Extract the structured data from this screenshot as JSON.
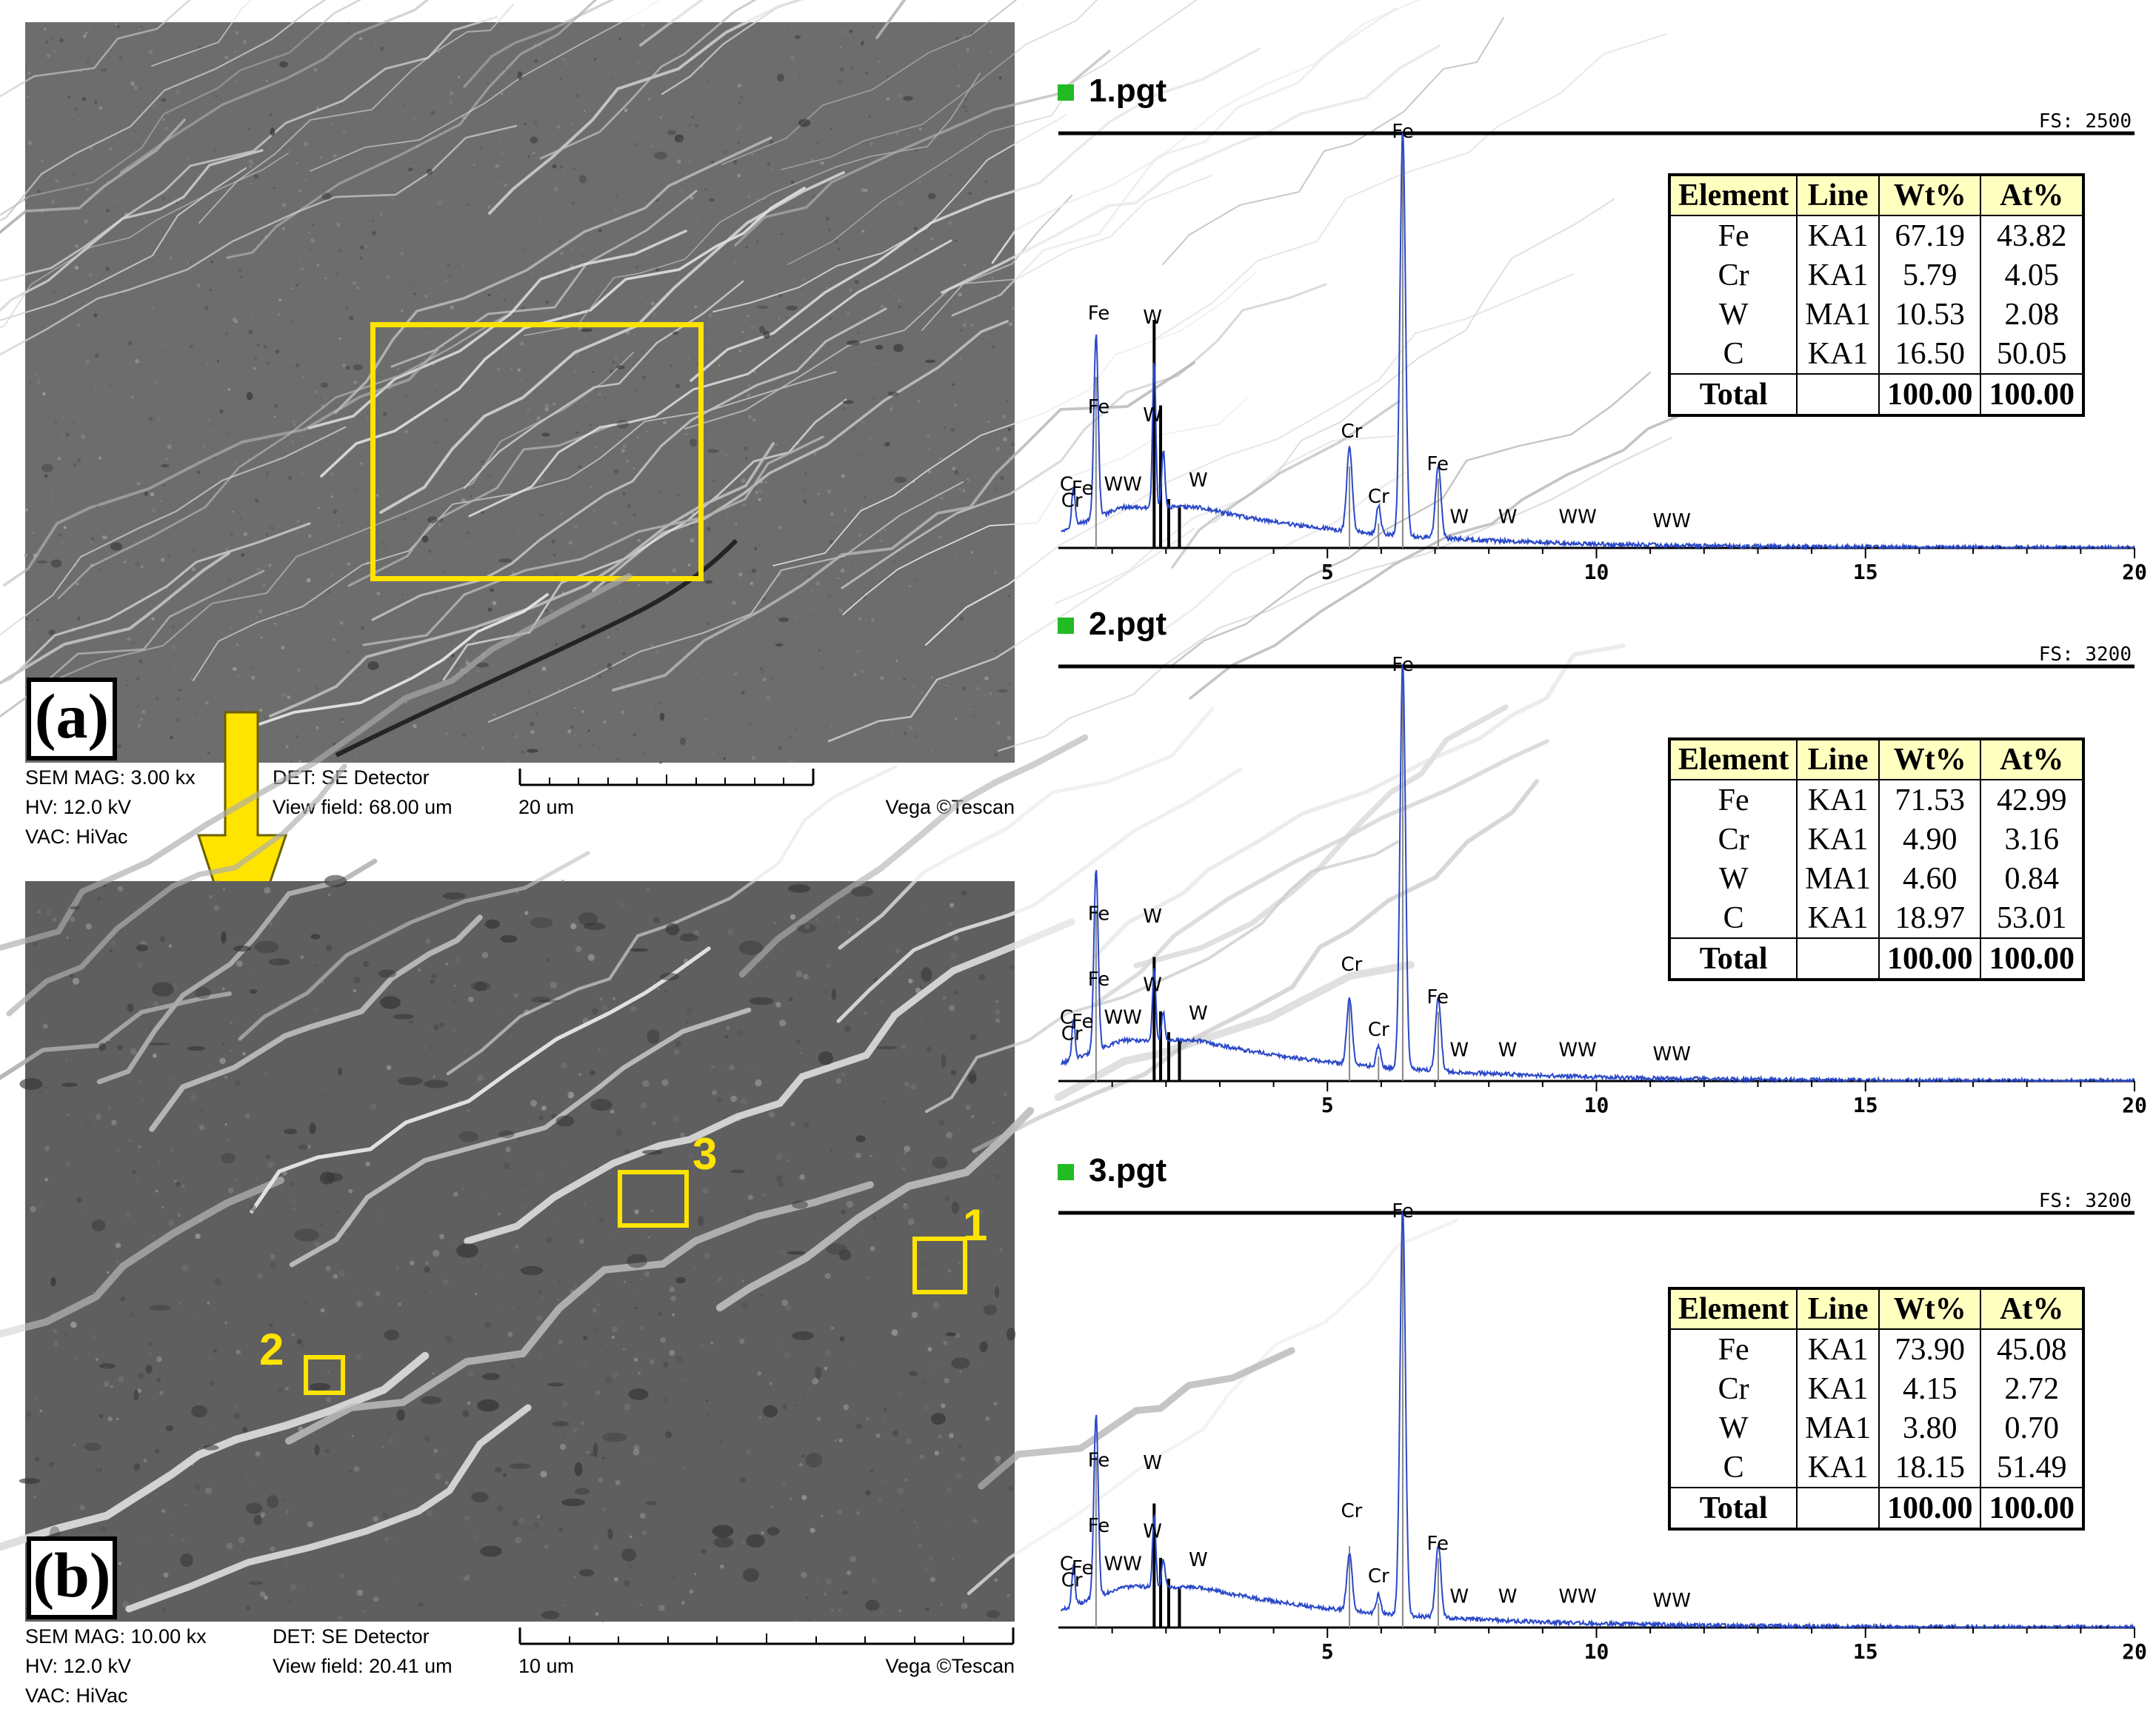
{
  "panel_a": {
    "label": "(a)",
    "info": {
      "mag": "SEM MAG: 3.00 kx",
      "hv": "HV:   12.0 kV",
      "vac": "VAC: HiVac",
      "det": "DET: SE Detector",
      "view": "View field: 68.00 um",
      "scale": "20 um",
      "brand": "Vega ©Tescan"
    }
  },
  "panel_b": {
    "label": "(b)",
    "info": {
      "mag": "SEM MAG: 10.00 kx",
      "hv": "HV:   12.0 kV",
      "vac": "VAC: HiVac",
      "det": "DET: SE Detector",
      "view": "View field: 20.41 um",
      "scale": "10 um",
      "brand": "Vega ©Tescan"
    },
    "markers": [
      {
        "label": "1"
      },
      {
        "label": "2"
      },
      {
        "label": "3"
      }
    ]
  },
  "colors": {
    "highlight": "#ffe400",
    "spectrum": "#2a48c8",
    "table_header": "#ffffc0",
    "title_square": "#22bb22"
  },
  "spectra": [
    {
      "title": "1.pgt",
      "fs": "FS: 2500",
      "peak_labels": [
        "Fe",
        "Fe",
        "W",
        "W",
        "Cr",
        "Cr",
        "Fe",
        "W",
        "W",
        "WW",
        "WW",
        "C",
        "Cr",
        "Fe",
        "W",
        "WW"
      ],
      "table": {
        "header": [
          "Element",
          "Line",
          "Wt%",
          "At%"
        ],
        "rows": [
          [
            "Fe",
            "KA1",
            "67.19",
            "43.82"
          ],
          [
            "Cr",
            "KA1",
            "5.79",
            "4.05"
          ],
          [
            "W",
            "MA1",
            "10.53",
            "2.08"
          ],
          [
            "C",
            "KA1",
            "16.50",
            "50.05"
          ]
        ],
        "total": [
          "Total",
          "",
          "100.00",
          "100.00"
        ]
      }
    },
    {
      "title": "2.pgt",
      "fs": "FS: 3200",
      "peak_labels": [
        "Fe",
        "Fe",
        "W",
        "W",
        "Cr",
        "Cr",
        "Fe",
        "W",
        "W",
        "WW",
        "WW",
        "C",
        "Cr",
        "Fe",
        "W",
        "WW"
      ],
      "table": {
        "header": [
          "Element",
          "Line",
          "Wt%",
          "At%"
        ],
        "rows": [
          [
            "Fe",
            "KA1",
            "71.53",
            "42.99"
          ],
          [
            "Cr",
            "KA1",
            "4.90",
            "3.16"
          ],
          [
            "W",
            "MA1",
            "4.60",
            "0.84"
          ],
          [
            "C",
            "KA1",
            "18.97",
            "53.01"
          ]
        ],
        "total": [
          "Total",
          "",
          "100.00",
          "100.00"
        ]
      }
    },
    {
      "title": "3.pgt",
      "fs": "FS: 3200",
      "peak_labels": [
        "Fe",
        "Fe",
        "W",
        "W",
        "Cr",
        "Cr",
        "Fe",
        "W",
        "W",
        "WW",
        "WW",
        "C",
        "Cr",
        "Fe",
        "W",
        "WW"
      ],
      "table": {
        "header": [
          "Element",
          "Line",
          "Wt%",
          "At%"
        ],
        "rows": [
          [
            "Fe",
            "KA1",
            "73.90",
            "45.08"
          ],
          [
            "Cr",
            "KA1",
            "4.15",
            "2.72"
          ],
          [
            "W",
            "MA1",
            "3.80",
            "0.70"
          ],
          [
            "C",
            "KA1",
            "18.15",
            "51.49"
          ]
        ],
        "total": [
          "Total",
          "",
          "100.00",
          "100.00"
        ]
      }
    }
  ],
  "chart_data": [
    {
      "type": "line",
      "title": "1.pgt",
      "annotation": "FS: 2500",
      "xlim": [
        0,
        20
      ],
      "x_ticks": [
        "5",
        "10",
        "15",
        "20"
      ],
      "grid": false,
      "peaks_keV": {
        "Fe": 6.4,
        "Fe_L": 0.7,
        "Fe_Kb": 7.06,
        "Cr": 5.41,
        "Cr_Kb": 5.95,
        "W_M": 1.78,
        "C": 0.28
      },
      "table": {
        "Fe": [
          67.19,
          43.82
        ],
        "Cr": [
          5.79,
          4.05
        ],
        "W": [
          10.53,
          2.08
        ],
        "C": [
          16.5,
          50.05
        ]
      }
    },
    {
      "type": "line",
      "title": "2.pgt",
      "annotation": "FS: 3200",
      "xlim": [
        0,
        20
      ],
      "x_ticks": [
        "5",
        "10",
        "15",
        "20"
      ],
      "grid": false,
      "peaks_keV": {
        "Fe": 6.4,
        "Fe_L": 0.7,
        "Fe_Kb": 7.06,
        "Cr": 5.41,
        "Cr_Kb": 5.95,
        "W_M": 1.78,
        "C": 0.28
      },
      "table": {
        "Fe": [
          71.53,
          42.99
        ],
        "Cr": [
          4.9,
          3.16
        ],
        "W": [
          4.6,
          0.84
        ],
        "C": [
          18.97,
          53.01
        ]
      }
    },
    {
      "type": "line",
      "title": "3.pgt",
      "annotation": "FS: 3200",
      "xlim": [
        0,
        20
      ],
      "x_ticks": [
        "5",
        "10",
        "15",
        "20"
      ],
      "grid": false,
      "peaks_keV": {
        "Fe": 6.4,
        "Fe_L": 0.7,
        "Fe_Kb": 7.06,
        "Cr": 5.41,
        "Cr_Kb": 5.95,
        "W_M": 1.78,
        "C": 0.28
      },
      "table": {
        "Fe": [
          73.9,
          45.08
        ],
        "Cr": [
          4.15,
          2.72
        ],
        "W": [
          3.8,
          0.7
        ],
        "C": [
          18.15,
          51.49
        ]
      }
    }
  ]
}
